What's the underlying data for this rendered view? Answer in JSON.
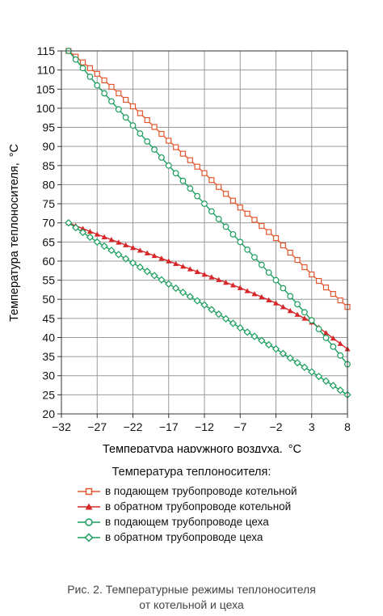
{
  "chart_data": {
    "type": "line",
    "xlabel": "Температура наружного воздуха,",
    "xlabel_unit": "°C",
    "ylabel": "Температура теплоносителя,",
    "ylabel_unit": "°C",
    "xlim": [
      -32,
      8
    ],
    "ylim": [
      20,
      115
    ],
    "x_ticks": [
      -32,
      -27,
      -22,
      -17,
      -12,
      -7,
      -2,
      3,
      8
    ],
    "y_ticks": [
      20,
      25,
      30,
      35,
      40,
      45,
      50,
      55,
      60,
      65,
      70,
      75,
      80,
      85,
      90,
      95,
      100,
      105,
      110,
      115
    ],
    "grid": true,
    "legend_title": "Температура теплоносителя:",
    "series": [
      {
        "name": "в подающем трубопроводе котельной",
        "color": "#e4572e",
        "marker": "square",
        "x": [
          -31,
          -27,
          -22,
          -17,
          -12,
          -7,
          -2,
          3,
          8
        ],
        "y": [
          115,
          109,
          100.5,
          91.5,
          83,
          74,
          66,
          56.5,
          48
        ]
      },
      {
        "name": "в обратном трубопроводе котельной",
        "color": "#d62728",
        "marker": "triangle",
        "x": [
          -31,
          -27,
          -22,
          -17,
          -12,
          -7,
          -2,
          3,
          8
        ],
        "y": [
          70,
          67,
          63.5,
          60,
          56.5,
          53,
          49,
          44,
          37
        ]
      },
      {
        "name": "в подающем трубопроводе цеха",
        "color": "#1a9e5c",
        "marker": "circle",
        "x": [
          -31,
          -27,
          -22,
          -17,
          -12,
          -7,
          -2,
          3,
          8
        ],
        "y": [
          115,
          106,
          95.5,
          85,
          75,
          65,
          55,
          44.5,
          33
        ]
      },
      {
        "name": "в обратном трубопроводе цеха",
        "color": "#1a9e5c",
        "marker": "diamond",
        "x": [
          -31,
          -27,
          -22,
          -17,
          -12,
          -7,
          -2,
          3,
          8
        ],
        "y": [
          70,
          65,
          59.5,
          54,
          48.5,
          42.5,
          37,
          31,
          25
        ]
      }
    ]
  },
  "caption": {
    "line1": "Рис. 2. Температурные режимы теплоносителя",
    "line2": "от котельной и цеха"
  }
}
